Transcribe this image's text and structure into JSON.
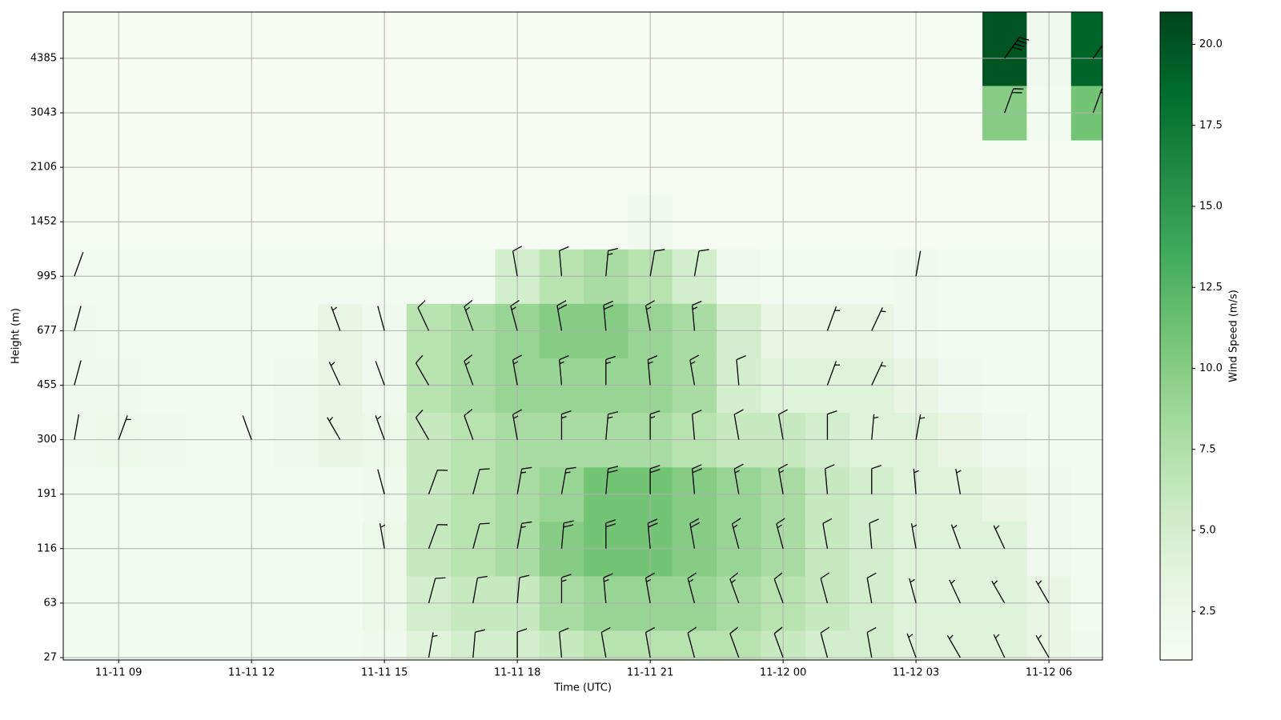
{
  "chart_data": {
    "type": "heatmap",
    "xlabel": "Time (UTC)",
    "ylabel": "Height (m)",
    "colorbar_label": "Wind Speed (m/s)",
    "x": [
      "11-11 08",
      "11-11 09",
      "11-11 10",
      "11-11 11",
      "11-11 12",
      "11-11 13",
      "11-11 14",
      "11-11 15",
      "11-11 16",
      "11-11 17",
      "11-11 18",
      "11-11 19",
      "11-11 20",
      "11-11 21",
      "11-11 22",
      "11-11 23",
      "11-12 00",
      "11-12 01",
      "11-12 02",
      "11-12 03",
      "11-12 04",
      "11-12 05",
      "11-12 06",
      "11-12 07"
    ],
    "y_categories": [
      27,
      63,
      116,
      191,
      300,
      455,
      677,
      995,
      1452,
      2106,
      3043,
      4385
    ],
    "xticks": [
      "11-11 09",
      "11-11 12",
      "11-11 15",
      "11-11 18",
      "11-11 21",
      "11-12 00",
      "11-12 03",
      "11-12 06"
    ],
    "values": [
      [
        1.5,
        1.5,
        1.5,
        1.5,
        1.5,
        1.5,
        1.5,
        2,
        4,
        5,
        5,
        6,
        7,
        7,
        7,
        7,
        6,
        5,
        5,
        4,
        4,
        4,
        3,
        2
      ],
      [
        1.5,
        1.5,
        1.5,
        1.5,
        1.5,
        1.5,
        1.5,
        2.5,
        5,
        6,
        6,
        8,
        9,
        9,
        9,
        8,
        7,
        6,
        5,
        4,
        4,
        4,
        3,
        1.5
      ],
      [
        1.5,
        1.5,
        1.5,
        1.5,
        1.5,
        1.5,
        1.5,
        2.5,
        6,
        7,
        8,
        10,
        11,
        11,
        10,
        9,
        8,
        6,
        5,
        4,
        4,
        4,
        2,
        1.5
      ],
      [
        1.5,
        1.5,
        1.5,
        1.5,
        1.5,
        1.5,
        1.5,
        2,
        6,
        7,
        8,
        9,
        11,
        11,
        10,
        9,
        8,
        6,
        5,
        4,
        4,
        3,
        2,
        1.5
      ],
      [
        2,
        2.5,
        2,
        1.5,
        1.5,
        2,
        3,
        2.5,
        6,
        7,
        8,
        8,
        8,
        8,
        7,
        6,
        6,
        5,
        4,
        4,
        3,
        2,
        1.5,
        1.5
      ],
      [
        2,
        2,
        1.5,
        1.5,
        1.5,
        2,
        3,
        2,
        7,
        8,
        9,
        9,
        9,
        9,
        8,
        5,
        4,
        4,
        4,
        3,
        2,
        1.5,
        1.5,
        1.5
      ],
      [
        2,
        1.5,
        1.5,
        1.5,
        1.5,
        1.5,
        3,
        2,
        7,
        8,
        9,
        10,
        10,
        9,
        8,
        5,
        3,
        3,
        3,
        2,
        1.5,
        1.5,
        1.5,
        1.5
      ],
      [
        1.5,
        1.5,
        1.5,
        1.5,
        1.5,
        1.5,
        1.5,
        1.5,
        1.5,
        1.5,
        5,
        7,
        8,
        7,
        5,
        2,
        1.5,
        1.5,
        1.5,
        2,
        1.5,
        1.5,
        1.5,
        1.5
      ],
      [
        1.2,
        1.2,
        1.2,
        1.2,
        1.2,
        1.2,
        1.2,
        1.2,
        1.2,
        1.2,
        1.2,
        1.2,
        1.2,
        2,
        1.2,
        1.2,
        1.2,
        1.2,
        1.2,
        1.2,
        1.2,
        1.2,
        1.2,
        1.2
      ],
      [
        1.2,
        1.2,
        1.2,
        1.2,
        1.2,
        1.2,
        1.2,
        1.2,
        1.2,
        1.2,
        1.2,
        1.2,
        1.2,
        1.2,
        1.2,
        1.2,
        1.2,
        1.2,
        1.2,
        1.2,
        1.2,
        1.2,
        1.2,
        1.2
      ],
      [
        1.2,
        1.2,
        1.2,
        1.2,
        1.2,
        1.2,
        1.2,
        1.2,
        1.2,
        1.2,
        1.2,
        1.2,
        1.2,
        1.2,
        1.2,
        1.2,
        1.2,
        1.2,
        1.2,
        1.2,
        1.2,
        10,
        1.5,
        11
      ],
      [
        1.2,
        1.2,
        1.2,
        1.2,
        1.2,
        1.2,
        1.2,
        1.2,
        1.2,
        1.2,
        1.2,
        1.2,
        1.2,
        1.2,
        1.2,
        1.2,
        1.2,
        1.2,
        1.2,
        1.2,
        1.2,
        20,
        2,
        19
      ]
    ],
    "direction": [
      [
        null,
        null,
        null,
        null,
        null,
        null,
        null,
        null,
        10,
        5,
        0,
        355,
        350,
        350,
        345,
        340,
        340,
        345,
        350,
        340,
        330,
        335,
        330,
        null
      ],
      [
        null,
        null,
        null,
        null,
        null,
        null,
        null,
        null,
        15,
        10,
        5,
        0,
        355,
        350,
        345,
        340,
        340,
        345,
        350,
        345,
        335,
        330,
        330,
        null
      ],
      [
        null,
        null,
        null,
        null,
        null,
        null,
        null,
        350,
        20,
        15,
        10,
        5,
        0,
        355,
        350,
        345,
        345,
        350,
        355,
        350,
        340,
        335,
        null,
        null
      ],
      [
        null,
        null,
        null,
        null,
        null,
        null,
        null,
        345,
        20,
        15,
        10,
        10,
        5,
        0,
        355,
        350,
        350,
        355,
        0,
        355,
        350,
        null,
        null,
        null
      ],
      [
        10,
        20,
        null,
        null,
        340,
        null,
        330,
        340,
        330,
        340,
        350,
        0,
        5,
        0,
        355,
        350,
        350,
        0,
        5,
        10,
        null,
        null,
        null,
        null
      ],
      [
        15,
        null,
        null,
        null,
        null,
        null,
        335,
        340,
        330,
        340,
        350,
        355,
        0,
        355,
        350,
        355,
        null,
        20,
        25,
        null,
        null,
        null,
        null,
        null
      ],
      [
        15,
        null,
        null,
        null,
        null,
        null,
        340,
        345,
        335,
        340,
        345,
        350,
        355,
        350,
        355,
        null,
        null,
        20,
        25,
        null,
        null,
        null,
        null,
        null
      ],
      [
        20,
        null,
        null,
        null,
        null,
        null,
        null,
        null,
        null,
        null,
        350,
        355,
        5,
        10,
        10,
        null,
        null,
        null,
        null,
        10,
        null,
        null,
        null,
        null
      ],
      [
        null,
        null,
        null,
        null,
        null,
        null,
        null,
        null,
        null,
        null,
        null,
        null,
        null,
        null,
        null,
        null,
        null,
        null,
        null,
        null,
        null,
        null,
        null,
        null
      ],
      [
        null,
        null,
        null,
        null,
        null,
        null,
        null,
        null,
        null,
        null,
        null,
        null,
        null,
        null,
        null,
        null,
        null,
        null,
        null,
        null,
        null,
        null,
        null,
        null
      ],
      [
        null,
        null,
        null,
        null,
        null,
        null,
        null,
        null,
        null,
        null,
        null,
        null,
        null,
        null,
        null,
        null,
        null,
        null,
        null,
        null,
        null,
        20,
        null,
        20
      ],
      [
        null,
        null,
        null,
        null,
        null,
        null,
        null,
        null,
        null,
        null,
        null,
        null,
        null,
        null,
        null,
        null,
        null,
        null,
        null,
        null,
        null,
        35,
        null,
        35
      ]
    ],
    "colormap": "Greens",
    "clim": [
      1,
      21
    ],
    "cticks": [
      2.5,
      {
        "value": 5,
        "label": "5.0"
      },
      7.5,
      {
        "value": 10,
        "label": "10.0"
      },
      12.5,
      {
        "value": 15,
        "label": "15.0"
      },
      17.5,
      {
        "value": 20,
        "label": "20.0"
      }
    ],
    "grid": true
  }
}
